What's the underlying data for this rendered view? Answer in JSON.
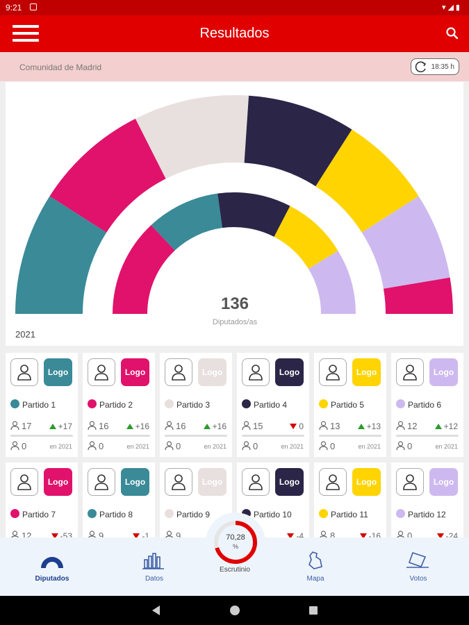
{
  "status_bar": {
    "time": "9:21"
  },
  "app_bar": {
    "title": "Resultados",
    "menu_icon": "hamburger-icon",
    "search_icon": "search-icon"
  },
  "region": {
    "name": "Comunidad de Madrid",
    "refresh_time": "18:35 h"
  },
  "chart": {
    "year": "2021",
    "total": "136",
    "total_label": "Diputados/as"
  },
  "chart_data": {
    "type": "pie",
    "rings": [
      {
        "name": "outer",
        "segments": [
          {
            "color": "#3a8a98",
            "value": 17
          },
          {
            "color": "#e0126b",
            "value": 16
          },
          {
            "color": "#e8e0de",
            "value": 16
          },
          {
            "color": "#2b2547",
            "value": 15
          },
          {
            "color": "#ffd400",
            "value": 13
          },
          {
            "color": "#cdb9ef",
            "value": 12
          },
          {
            "color": "#e0126b",
            "value": 5
          }
        ]
      },
      {
        "name": "inner",
        "segments": [
          {
            "color": "#e0126b",
            "value": 12
          },
          {
            "color": "#3a8a98",
            "value": 9
          },
          {
            "color": "#2b2547",
            "value": 9
          },
          {
            "color": "#ffd400",
            "value": 8
          },
          {
            "color": "#cdb9ef",
            "value": 8
          }
        ]
      }
    ]
  },
  "parties_row1": [
    {
      "name": "Partido 1",
      "color": "#3a8a98",
      "logo": "Logo",
      "seats": "17",
      "delta": "+17",
      "dir": "up",
      "prev": "0",
      "prev_label": "en 2021"
    },
    {
      "name": "Partido 2",
      "color": "#e0126b",
      "logo": "Logo",
      "seats": "16",
      "delta": "+16",
      "dir": "up",
      "prev": "0",
      "prev_label": "en 2021"
    },
    {
      "name": "Partido 3",
      "color": "#e8e0de",
      "logo": "Logo",
      "seats": "16",
      "delta": "+16",
      "dir": "up",
      "prev": "0",
      "prev_label": "en 2021"
    },
    {
      "name": "Partido 4",
      "color": "#2b2547",
      "logo": "Logo",
      "seats": "15",
      "delta": "0",
      "dir": "down",
      "prev": "0",
      "prev_label": "en 2021"
    },
    {
      "name": "Partido 5",
      "color": "#ffd400",
      "logo": "Logo",
      "seats": "13",
      "delta": "+13",
      "dir": "up",
      "prev": "0",
      "prev_label": "en 2021"
    },
    {
      "name": "Partido 6",
      "color": "#cdb9ef",
      "logo": "Logo",
      "seats": "12",
      "delta": "+12",
      "dir": "up",
      "prev": "0",
      "prev_label": "en 2021"
    }
  ],
  "parties_row2": [
    {
      "name": "Partido 7",
      "color": "#e0126b",
      "logo": "Logo",
      "seats": "12",
      "delta": "-53",
      "dir": "down"
    },
    {
      "name": "Partido 8",
      "color": "#3a8a98",
      "logo": "Logo",
      "seats": "9",
      "delta": "-1",
      "dir": "down"
    },
    {
      "name": "Partido 9",
      "color": "#e8e0de",
      "logo": "Logo",
      "seats": "9",
      "delta": "",
      "dir": ""
    },
    {
      "name": "Partido 10",
      "color": "#2b2547",
      "logo": "Logo",
      "seats": "",
      "delta": "-4",
      "dir": "down"
    },
    {
      "name": "Partido 11",
      "color": "#ffd400",
      "logo": "Logo",
      "seats": "8",
      "delta": "-16",
      "dir": "down"
    },
    {
      "name": "Partido 12",
      "color": "#cdb9ef",
      "logo": "Logo",
      "seats": "0",
      "delta": "-24",
      "dir": "down"
    }
  ],
  "bottom_nav": {
    "diputados": "Diputados",
    "datos": "Datos",
    "escrutinio": "Escrutinio",
    "escrutinio_value": "70,28",
    "escrutinio_unit": "%",
    "escrutinio_fraction": 0.7028,
    "mapa": "Mapa",
    "votos": "Votos"
  },
  "colors": {
    "brand": "#e00000",
    "nav_accent": "#1c3f8f"
  }
}
